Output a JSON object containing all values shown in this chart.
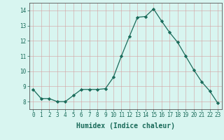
{
  "x": [
    0,
    1,
    2,
    3,
    4,
    5,
    6,
    7,
    8,
    9,
    10,
    11,
    12,
    13,
    14,
    15,
    16,
    17,
    18,
    19,
    20,
    21,
    22,
    23
  ],
  "y": [
    8.8,
    8.2,
    8.2,
    8.0,
    8.0,
    8.4,
    8.8,
    8.8,
    8.8,
    8.85,
    9.6,
    11.0,
    12.3,
    13.55,
    13.6,
    14.1,
    13.3,
    12.55,
    11.9,
    11.0,
    10.1,
    9.3,
    8.7,
    7.9
  ],
  "line_color": "#1a6b5a",
  "marker": "D",
  "marker_size": 2.2,
  "bg_color": "#d8f5f0",
  "grid_color_major": "#c8ddd9",
  "grid_color_minor": "#dde9e6",
  "xlabel": "Humidex (Indice chaleur)",
  "ylim": [
    7.5,
    14.5
  ],
  "xlim": [
    -0.5,
    23.5
  ],
  "yticks": [
    8,
    9,
    10,
    11,
    12,
    13,
    14
  ],
  "xticks": [
    0,
    1,
    2,
    3,
    4,
    5,
    6,
    7,
    8,
    9,
    10,
    11,
    12,
    13,
    14,
    15,
    16,
    17,
    18,
    19,
    20,
    21,
    22,
    23
  ],
  "tick_fontsize": 5.5,
  "xlabel_fontsize": 7.0,
  "tick_color": "#1a6b5a",
  "spine_color": "#555555"
}
